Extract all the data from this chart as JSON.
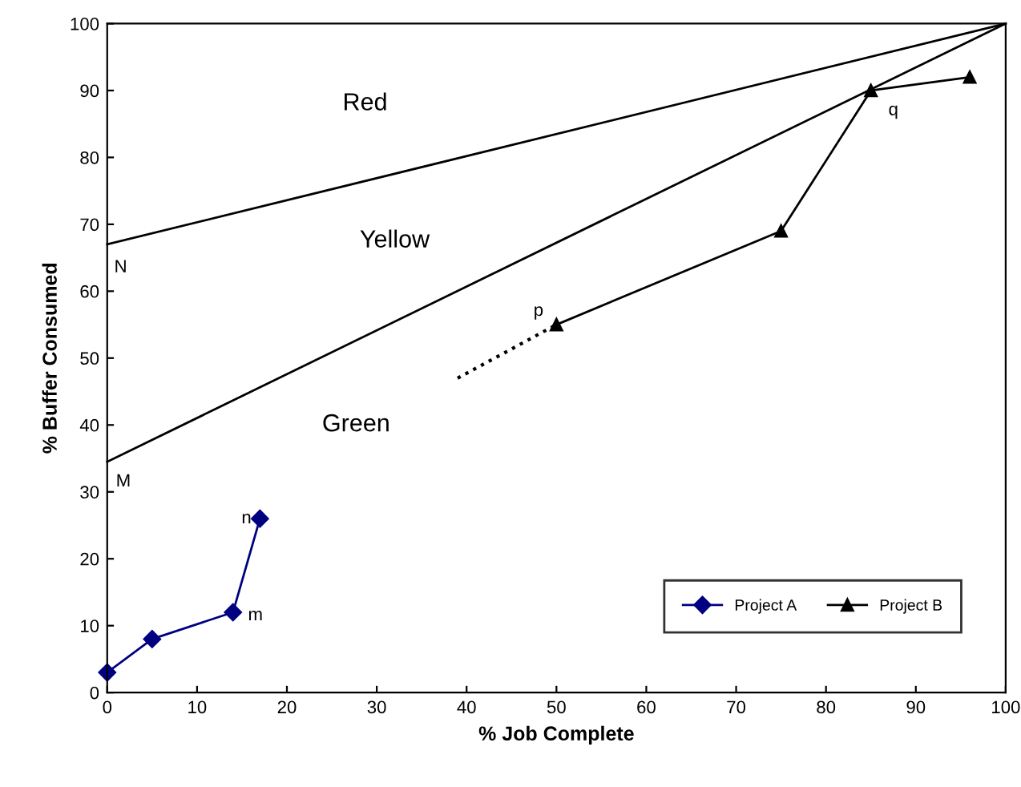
{
  "chart_data": {
    "type": "line",
    "xlabel": "% Job Complete",
    "ylabel": "% Buffer Consumed",
    "xlim": [
      0,
      100
    ],
    "ylim": [
      0,
      100
    ],
    "xticks": [
      0,
      10,
      20,
      30,
      40,
      50,
      60,
      70,
      80,
      90,
      100
    ],
    "yticks": [
      0,
      10,
      20,
      30,
      40,
      50,
      60,
      70,
      80,
      90,
      100
    ],
    "grid": false,
    "legend": "bottom right",
    "series": [
      {
        "x": [
          0,
          100
        ],
        "values": [
          67,
          100
        ],
        "color": "#000000",
        "marker": "none",
        "line_style": "solid"
      },
      {
        "x": [
          0,
          100
        ],
        "values": [
          34.5,
          100
        ],
        "color": "#000000",
        "marker": "none",
        "line_style": "solid"
      },
      {
        "name": "Project A",
        "x": [
          0,
          5,
          14,
          17
        ],
        "values": [
          3,
          8,
          12,
          26
        ],
        "color": "#000080",
        "marker": "diamond",
        "line_style": "solid"
      },
      {
        "name": "Project B",
        "x": [
          50,
          75,
          85,
          96
        ],
        "values": [
          55,
          69,
          90,
          92
        ],
        "color": "#000000",
        "marker": "triangle",
        "line_style": "solid"
      },
      {
        "x": [
          39,
          50
        ],
        "values": [
          47,
          55
        ],
        "color": "#000000",
        "marker": "none",
        "line_style": "dotted"
      }
    ],
    "annotations": [
      "Red",
      "Yellow",
      "Green",
      "N",
      "M",
      "n",
      "m",
      "p",
      "q"
    ]
  }
}
